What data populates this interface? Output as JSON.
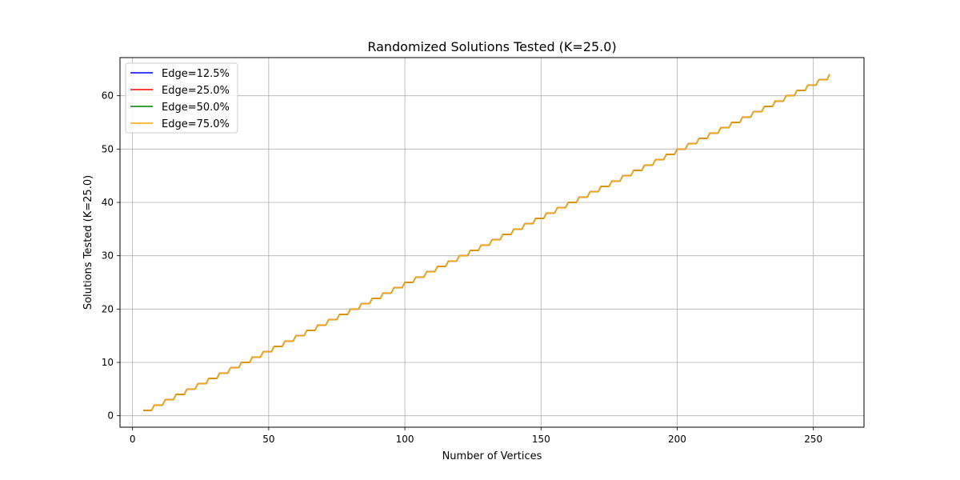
{
  "chart_data": {
    "type": "line",
    "title": "Randomized Solutions Tested (K=25.0)",
    "xlabel": "Number of Vertices",
    "ylabel": "Solutions Tested (K=25.0)",
    "xlim": [
      -4.6,
      268.6
    ],
    "ylim": [
      -2.15,
      67.15
    ],
    "xticks": [
      0,
      50,
      100,
      150,
      200,
      250
    ],
    "yticks": [
      0,
      10,
      20,
      30,
      40,
      50,
      60
    ],
    "grid": true,
    "legend_position": "top-left",
    "x_domain": [
      4,
      256
    ],
    "y_rule": "floor(x/4)",
    "series": [
      {
        "name": "Edge=12.5%",
        "color": "#0000ff"
      },
      {
        "name": "Edge=25.0%",
        "color": "#ff0000"
      },
      {
        "name": "Edge=50.0%",
        "color": "#008000"
      },
      {
        "name": "Edge=75.0%",
        "color": "#ffa500"
      }
    ]
  }
}
